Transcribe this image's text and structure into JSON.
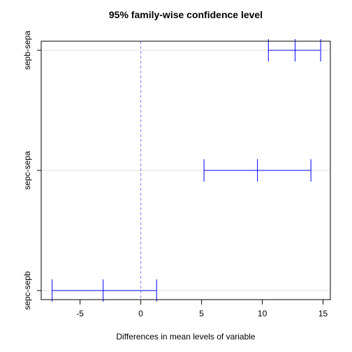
{
  "chart_data": {
    "type": "errorbar",
    "title": "95% family-wise confidence level",
    "xlabel": "Differences in mean levels of variable",
    "ylabel": "",
    "xlim": [
      -8.2,
      15.6
    ],
    "x_ticks": [
      -5,
      0,
      5,
      10,
      15
    ],
    "reference_line_x": 0,
    "grid": "horizontal",
    "comparisons": [
      {
        "label": "sepb-sepa",
        "lower": 10.5,
        "estimate": 12.7,
        "upper": 14.8
      },
      {
        "label": "sepc-sepa",
        "lower": 5.2,
        "estimate": 9.6,
        "upper": 14.0
      },
      {
        "label": "sepc-sepb",
        "lower": -7.3,
        "estimate": -3.1,
        "upper": 1.3
      }
    ],
    "colors": {
      "intervals": "#0000ff",
      "reference_line": "#8080ff",
      "grid": "#dddddd"
    }
  }
}
